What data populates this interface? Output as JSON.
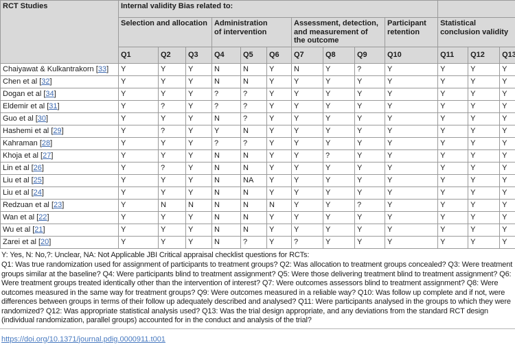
{
  "table": {
    "corner_header": "RCT Studies",
    "group_header": "Internal validity Bias related to:",
    "empty_top_right": "",
    "subgroups": [
      {
        "label": "Selection and allocation",
        "span": 3
      },
      {
        "label": "Administration\nof intervention",
        "span": 3
      },
      {
        "label": "Assessment, detection,\nand measurement of\nthe outcome",
        "span": 3
      },
      {
        "label": "Participant\nretention",
        "span": 1
      },
      {
        "label": "Statistical\nconclusion validity",
        "span": 3
      }
    ],
    "question_headers": [
      "Q1",
      "Q2",
      "Q3",
      "Q4",
      "Q5",
      "Q6",
      "Q7",
      "Q8",
      "Q9",
      "Q10",
      "Q11",
      "Q12",
      "Q13"
    ],
    "citation_format": {
      "open": "[",
      "close": "]"
    },
    "rows": [
      {
        "study": "Chaiyawat & Kulkantrakorn",
        "ref": "33",
        "answers": [
          "Y",
          "Y",
          "Y",
          "N",
          "N",
          "Y",
          "N",
          "Y",
          "?",
          "Y",
          "Y",
          "Y",
          "Y"
        ]
      },
      {
        "study": "Chen et al",
        "ref": "32",
        "answers": [
          "Y",
          "Y",
          "Y",
          "N",
          "N",
          "Y",
          "Y",
          "Y",
          "Y",
          "Y",
          "Y",
          "Y",
          "Y"
        ]
      },
      {
        "study": "Dogan et al",
        "ref": "34",
        "answers": [
          "Y",
          "Y",
          "Y",
          "?",
          "?",
          "Y",
          "Y",
          "Y",
          "Y",
          "Y",
          "Y",
          "Y",
          "Y"
        ]
      },
      {
        "study": "Eldemir et al",
        "ref": "31",
        "answers": [
          "Y",
          "?",
          "Y",
          "?",
          "?",
          "Y",
          "Y",
          "Y",
          "Y",
          "Y",
          "Y",
          "Y",
          "Y"
        ]
      },
      {
        "study": "Guo et al",
        "ref": "30",
        "answers": [
          "Y",
          "Y",
          "Y",
          "N",
          "?",
          "Y",
          "Y",
          "Y",
          "Y",
          "Y",
          "Y",
          "Y",
          "Y"
        ]
      },
      {
        "study": "Hashemi et al",
        "ref": "29",
        "answers": [
          "Y",
          "?",
          "Y",
          "Y",
          "N",
          "Y",
          "Y",
          "Y",
          "Y",
          "Y",
          "Y",
          "Y",
          "Y"
        ]
      },
      {
        "study": "Kahraman",
        "ref": "28",
        "answers": [
          "Y",
          "Y",
          "Y",
          "?",
          "?",
          "Y",
          "Y",
          "Y",
          "Y",
          "Y",
          "Y",
          "Y",
          "Y"
        ]
      },
      {
        "study": "Khoja et al",
        "ref": "27",
        "answers": [
          "Y",
          "Y",
          "Y",
          "N",
          "N",
          "Y",
          "Y",
          "?",
          "Y",
          "Y",
          "Y",
          "Y",
          "Y"
        ]
      },
      {
        "study": "Lin et al",
        "ref": "26",
        "answers": [
          "Y",
          "?",
          "Y",
          "N",
          "N",
          "Y",
          "Y",
          "Y",
          "Y",
          "Y",
          "Y",
          "Y",
          "Y"
        ]
      },
      {
        "study": "Liu et al",
        "ref": "25",
        "answers": [
          "Y",
          "Y",
          "Y",
          "N",
          "NA",
          "Y",
          "Y",
          "Y",
          "Y",
          "Y",
          "Y",
          "Y",
          "Y"
        ]
      },
      {
        "study": "Liu et al",
        "ref": "24",
        "answers": [
          "Y",
          "Y",
          "Y",
          "N",
          "N",
          "Y",
          "Y",
          "Y",
          "Y",
          "Y",
          "Y",
          "Y",
          "Y"
        ]
      },
      {
        "study": "Redzuan et al",
        "ref": "23",
        "answers": [
          "Y",
          "N",
          "N",
          "N",
          "N",
          "N",
          "Y",
          "Y",
          "?",
          "Y",
          "Y",
          "Y",
          "Y"
        ]
      },
      {
        "study": "Wan et al",
        "ref": "22",
        "answers": [
          "Y",
          "Y",
          "Y",
          "N",
          "N",
          "Y",
          "Y",
          "Y",
          "Y",
          "Y",
          "Y",
          "Y",
          "Y"
        ]
      },
      {
        "study": "Wu et al",
        "ref": "21",
        "answers": [
          "Y",
          "Y",
          "Y",
          "N",
          "N",
          "Y",
          "Y",
          "Y",
          "Y",
          "Y",
          "Y",
          "Y",
          "Y"
        ]
      },
      {
        "study": "Zarei et al",
        "ref": "20",
        "answers": [
          "Y",
          "Y",
          "Y",
          "N",
          "?",
          "Y",
          "?",
          "Y",
          "Y",
          "Y",
          "Y",
          "Y",
          "Y"
        ]
      }
    ]
  },
  "footnotes": {
    "legend": "Y: Yes, N: No,?: Unclear, NA: Not Applicable JBI Critical appraisal checklist questions for RCTs:",
    "questions": "Q1: Was true randomization used for assignment of participants to treatment groups? Q2: Was allocation to treatment groups concealed? Q3: Were treatment groups similar at the baseline? Q4: Were participants blind to treatment assignment? Q5: Were those delivering treatment blind to treatment assignment? Q6: Were treatment groups treated identically other than the intervention of interest? Q7: Were outcomes assessors blind to treatment assignment? Q8: Were outcomes measured in the same way for treatment groups? Q9: Were outcomes measured in a reliable way? Q10: Was follow up complete and if not, were differences between groups in terms of their follow up adequately described and analysed? Q11: Were participants analysed in the groups to which they were randomized? Q12: Was appropriate statistical analysis used? Q13: Was the trial design appropriate, and any deviations from the standard RCT design (individual randomization, parallel groups) accounted for in the conduct and analysis of the trial?"
  },
  "doi_link": "https://doi.org/10.1371/journal.pdig.0000911.t001",
  "colors": {
    "header_bg": "#d9d9d9",
    "border": "#999999",
    "link_blue": "#3b68b0"
  }
}
